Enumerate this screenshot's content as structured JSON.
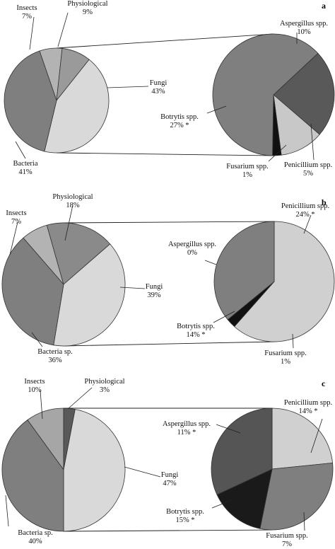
{
  "chart_data": [
    {
      "type": "pie",
      "panel_letter": "a",
      "main": {
        "slices": [
          {
            "name": "Insects",
            "pct_label": "7%",
            "value": 7,
            "color": "#b3b3b3"
          },
          {
            "name": "Physiological",
            "pct_label": "9%",
            "value": 9,
            "color": "#9a9a9a"
          },
          {
            "name": "Fungi",
            "pct_label": "43%",
            "value": 43,
            "color": "#d9d9d9"
          },
          {
            "name": "Bacteria",
            "pct_label": "41%",
            "value": 41,
            "color": "#7f7f7f"
          }
        ]
      },
      "detail": {
        "slices": [
          {
            "name": "Aspergillus  spp.",
            "pct_label": "10%",
            "value": 10,
            "color": "#595959"
          },
          {
            "name": "Penicillium  spp.",
            "pct_label": "5%",
            "value": 5,
            "color": "#c8c8c8"
          },
          {
            "name": "Fusarium  spp.",
            "pct_label": "1%",
            "value": 1,
            "color": "#111111"
          },
          {
            "name": "Botrytis  spp.",
            "pct_label": "27% *",
            "value": 27,
            "color": "#7f7f7f"
          }
        ]
      }
    },
    {
      "type": "pie",
      "panel_letter": "b",
      "main": {
        "slices": [
          {
            "name": "Insects",
            "pct_label": "7%",
            "value": 7,
            "color": "#b3b3b3"
          },
          {
            "name": "Physiological",
            "pct_label": "18%",
            "value": 18,
            "color": "#8a8a8a"
          },
          {
            "name": "Fungi",
            "pct_label": "39%",
            "value": 39,
            "color": "#d9d9d9"
          },
          {
            "name": "Bacteria sp.",
            "pct_label": "36%",
            "value": 36,
            "color": "#7f7f7f"
          }
        ]
      },
      "detail": {
        "slices": [
          {
            "name": "Aspergillus  spp.",
            "pct_label": "0%",
            "value": 0,
            "color": "#595959"
          },
          {
            "name": "Penicillium  spp.",
            "pct_label": "24% *",
            "value": 24,
            "color": "#d0d0d0"
          },
          {
            "name": "Fusarium  spp.",
            "pct_label": "1%",
            "value": 1,
            "color": "#111111"
          },
          {
            "name": "Botrytis  spp.",
            "pct_label": "14% *",
            "value": 14,
            "color": "#7f7f7f"
          }
        ]
      }
    },
    {
      "type": "pie",
      "panel_letter": "c",
      "main": {
        "slices": [
          {
            "name": "Insects",
            "pct_label": "10%",
            "value": 10,
            "color": "#a6a6a6"
          },
          {
            "name": "Physiological",
            "pct_label": "3%",
            "value": 3,
            "color": "#595959"
          },
          {
            "name": "Fungi",
            "pct_label": "47%",
            "value": 47,
            "color": "#d9d9d9"
          },
          {
            "name": "Bacteria sp.",
            "pct_label": "40%",
            "value": 40,
            "color": "#7f7f7f"
          }
        ]
      },
      "detail": {
        "slices": [
          {
            "name": "Aspergillus  spp.",
            "pct_label": "11% *",
            "value": 11,
            "color": "#d0d0d0"
          },
          {
            "name": "Penicillium  spp.",
            "pct_label": "14% *",
            "value": 14,
            "color": "#7f7f7f"
          },
          {
            "name": "Fusarium  spp.",
            "pct_label": "7%",
            "value": 7,
            "color": "#1a1a1a"
          },
          {
            "name": "Botrytis  spp.",
            "pct_label": "15% *",
            "value": 15,
            "color": "#555555"
          }
        ]
      }
    }
  ]
}
